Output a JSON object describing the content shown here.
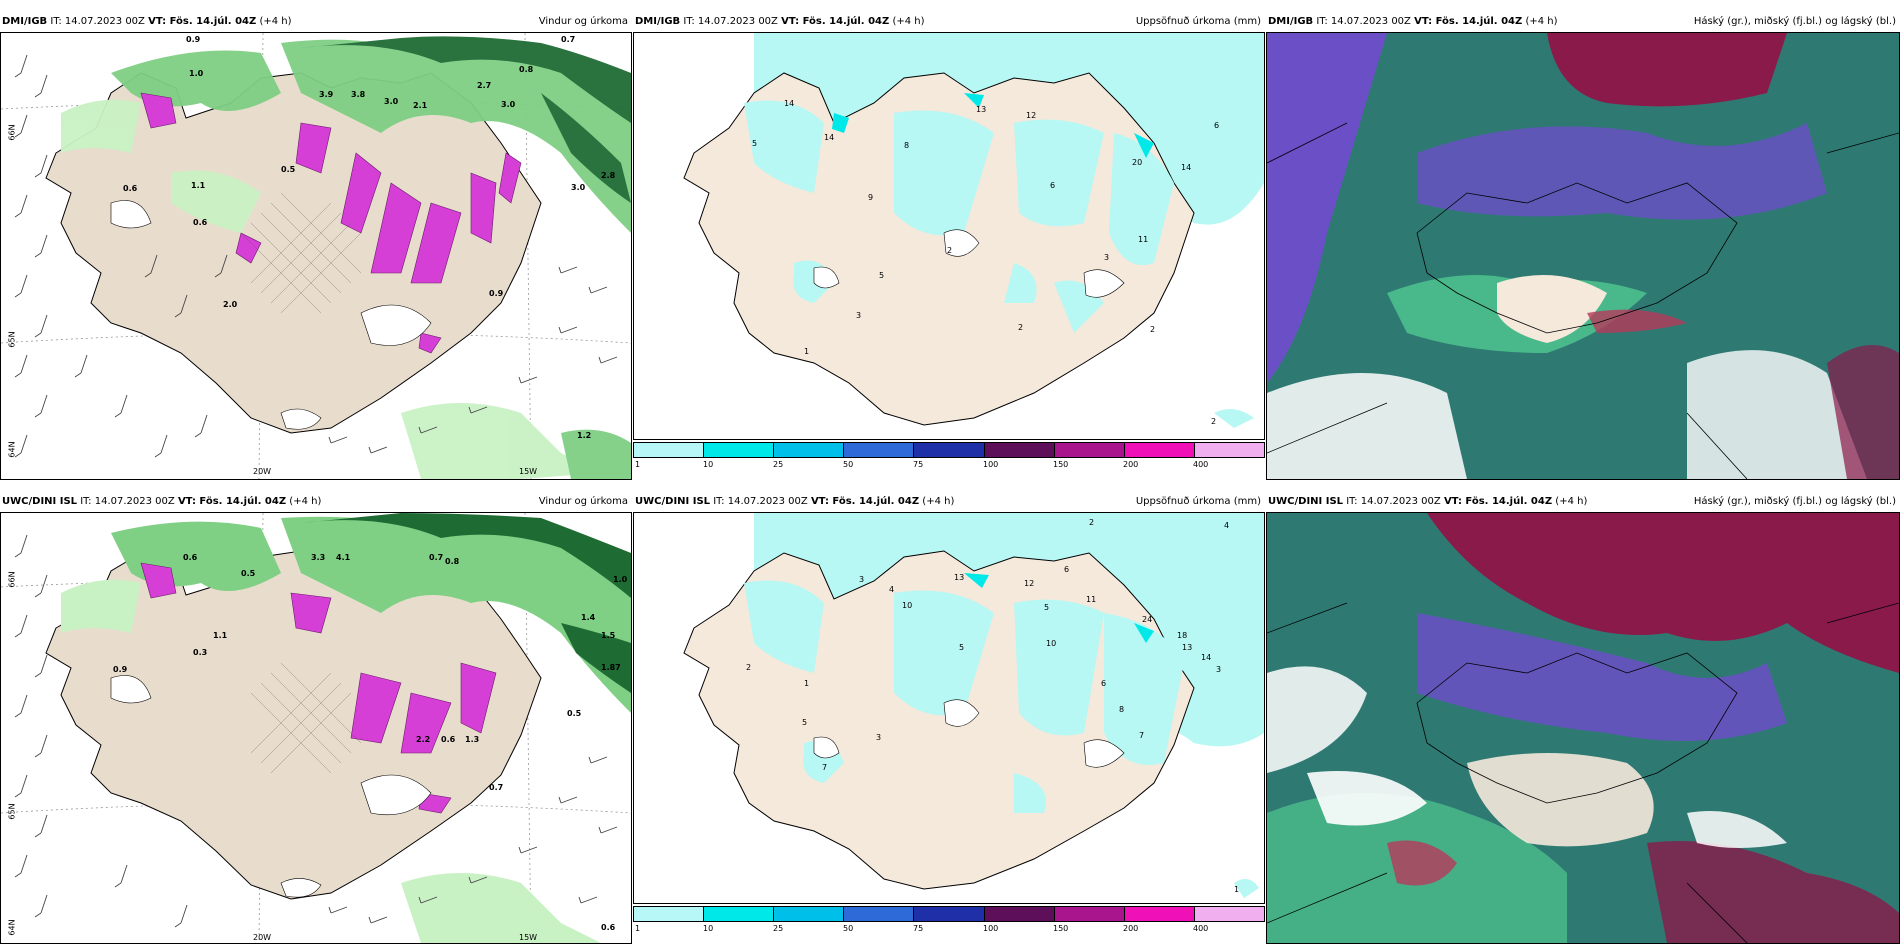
{
  "panels": {
    "r1c1": {
      "model": "DMI/IGB",
      "it": "IT: 14.07.2023 00Z",
      "vt": "VT: Fös. 14.júl. 04Z",
      "lead": "(+4 h)",
      "title": "Vindur og úrkoma",
      "lat_labels": [
        "66N",
        "65N",
        "64N"
      ],
      "lon_labels": [
        "20W",
        "15W"
      ],
      "vals": [
        "0.9",
        "1.0",
        "0.7",
        "3.9",
        "3.8",
        "3.0",
        "2.1",
        "2.7",
        "3.0",
        "0.8",
        "0.6",
        "1.1",
        "0.6",
        "2.0",
        "0.5",
        "2.8",
        "3.0",
        "1.2",
        "0.9"
      ]
    },
    "r1c2": {
      "model": "DMI/IGB",
      "it": "IT: 14.07.2023 00Z",
      "vt": "VT: Fös. 14.júl. 04Z",
      "lead": "(+4 h)",
      "title": "Uppsöfnuð úrkoma (mm)",
      "vals": [
        "14",
        "13",
        "12",
        "5",
        "14",
        "8",
        "9",
        "6",
        "6",
        "20",
        "14",
        "11",
        "2",
        "5",
        "3",
        "1",
        "2",
        "3",
        "2",
        "2"
      ]
    },
    "r1c3": {
      "model": "DMI/IGB",
      "it": "IT: 14.07.2023 00Z",
      "vt": "VT: Fös. 14.júl. 04Z",
      "lead": "(+4 h)",
      "title": "Háský (gr.), miðský (fj.bl.) og lágský (bl.)"
    },
    "r2c1": {
      "model": "UWC/DINI ISL",
      "it": "IT: 14.07.2023 00Z",
      "vt": "VT: Fös. 14.júl. 04Z",
      "lead": "(+4 h)",
      "title": "Vindur og úrkoma",
      "lat_labels": [
        "66N",
        "65N",
        "64N"
      ],
      "lon_labels": [
        "20W",
        "15W"
      ],
      "vals": [
        "0.6",
        "0.5",
        "3.3",
        "4.1",
        "0.7",
        "0.8",
        "1.0",
        "0.9",
        "0.3",
        "1.1",
        "1.4",
        "1.5",
        "1.87",
        "2.2",
        "0.6",
        "1.3",
        "0.5",
        "0.7",
        "0.6"
      ]
    },
    "r2c2": {
      "model": "UWC/DINI ISL",
      "it": "IT: 14.07.2023 00Z",
      "vt": "VT: Fös. 14.júl. 04Z",
      "lead": "(+4 h)",
      "title": "Uppsöfnuð úrkoma (mm)",
      "vals": [
        "2",
        "4",
        "3",
        "4",
        "10",
        "13",
        "12",
        "6",
        "5",
        "11",
        "24",
        "18",
        "13",
        "14",
        "3",
        "5",
        "10",
        "6",
        "8",
        "7",
        "1",
        "2",
        "5",
        "7",
        "3",
        "1"
      ]
    },
    "r2c3": {
      "model": "UWC/DINI ISL",
      "it": "IT: 14.07.2023 00Z",
      "vt": "VT: Fös. 14.júl. 04Z",
      "lead": "(+4 h)",
      "title": "Háský (gr.), miðský (fj.bl.) og lágský (bl.)"
    }
  },
  "colorbar": {
    "ticks": [
      "1",
      "10",
      "25",
      "50",
      "75",
      "100",
      "150",
      "200",
      "400"
    ],
    "colors": [
      "#b8f7f7",
      "#00e8e8",
      "#00bfe8",
      "#2e6bd9",
      "#1f2fa8",
      "#5e0f5a",
      "#a8158c",
      "#f010b8",
      "#f0b0f0"
    ]
  },
  "colors": {
    "land": "#f5e9dc",
    "land_wind": "#e8dccd",
    "precip_light": "#c9f2c4",
    "precip_mid": "#7fcf84",
    "precip_dark": "#1f6b34",
    "precip_pink": "#d63fd6",
    "sea_precip": "#b7f7f4",
    "cloud_high": "#2e7a73",
    "cloud_mid": "#6b4fc7",
    "cloud_low": "#8a1a4a",
    "cloud_green": "#49b88a"
  }
}
